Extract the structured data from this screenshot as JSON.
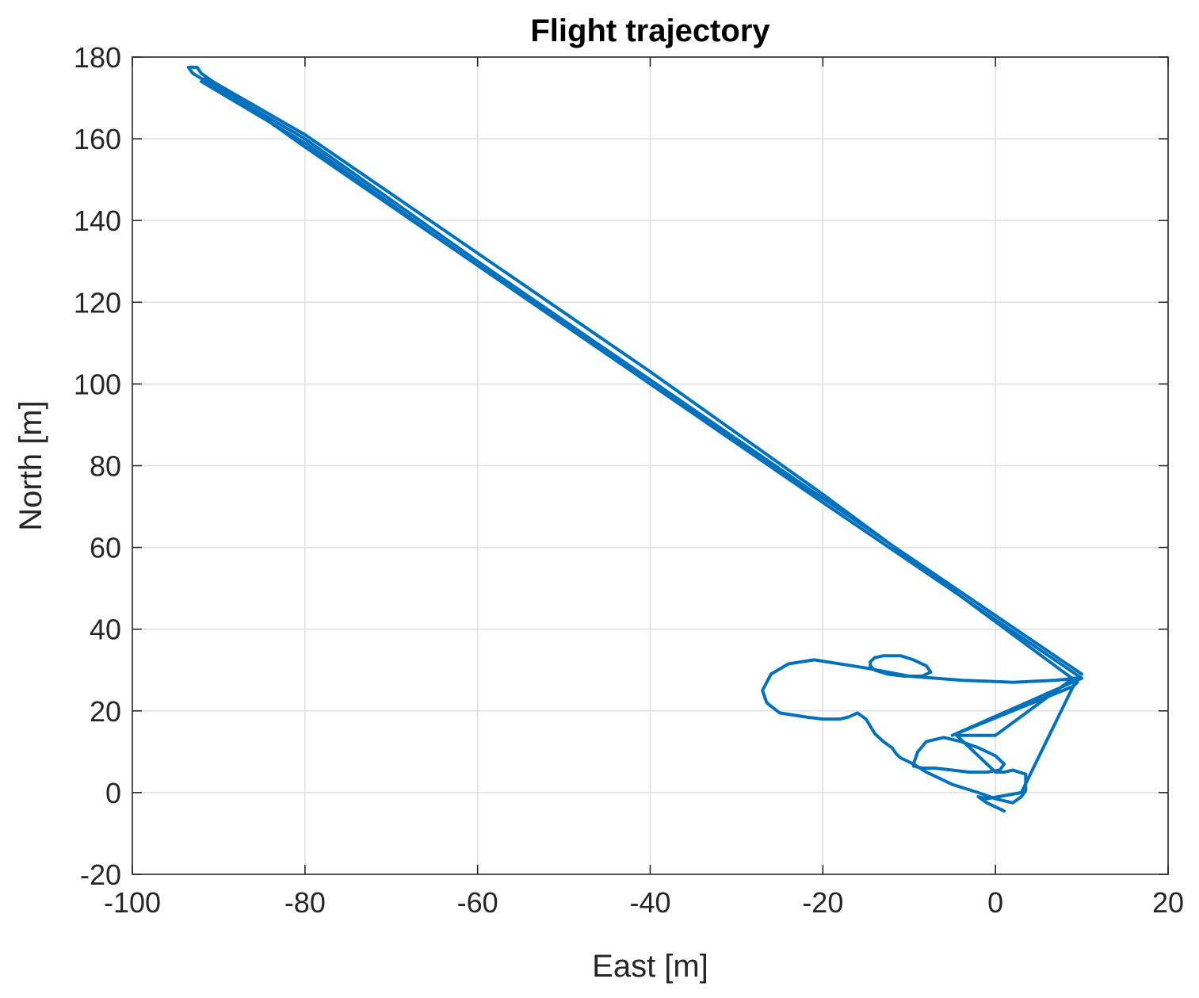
{
  "chart_data": {
    "type": "line",
    "title": "Flight trajectory",
    "xlabel": "East [m]",
    "ylabel": "North [m]",
    "xlim": [
      -100,
      20
    ],
    "ylim": [
      -20,
      180
    ],
    "xticks": [
      -100,
      -80,
      -60,
      -40,
      -20,
      0,
      20
    ],
    "yticks": [
      -20,
      0,
      20,
      40,
      60,
      80,
      100,
      120,
      140,
      160,
      180
    ],
    "grid": true,
    "series": [
      {
        "color": "#0072BD",
        "x": [
          10,
          -20,
          -40,
          -60,
          -80,
          -93,
          -93.5,
          -92.5,
          -92,
          -80,
          -60,
          -40,
          -20,
          10,
          -20,
          -40,
          -60,
          -80,
          -92,
          -91.5,
          -80,
          -60,
          -40,
          -20,
          9.5,
          9,
          9.5,
          7,
          2,
          -4,
          -10,
          -15,
          -21,
          -24,
          -26,
          -27,
          -26.5,
          -25,
          -22,
          -20,
          -18,
          -17,
          -16,
          -15,
          -14,
          -13,
          -12,
          -11.5,
          -11,
          -9.5,
          -8,
          -5,
          -2,
          0,
          2,
          3,
          3.5,
          3.5,
          3.5,
          2,
          1,
          0,
          -4.5,
          0,
          9,
          10,
          -5,
          9,
          3,
          -1,
          -2,
          -1,
          0,
          1
        ],
        "y": [
          29,
          72,
          101,
          130,
          160,
          176,
          177.5,
          177.5,
          176,
          158,
          129,
          101,
          71,
          28,
          71,
          100,
          129,
          159,
          174,
          175,
          161,
          132,
          103,
          73,
          27,
          26,
          28,
          27.5,
          27,
          27.5,
          28.5,
          30.5,
          32.5,
          31.5,
          29,
          25,
          22,
          19.5,
          18.5,
          18,
          18,
          18.5,
          19.5,
          18,
          14.5,
          12.5,
          11,
          9.5,
          8.5,
          7,
          5,
          2,
          0,
          -1.5,
          -2.5,
          -1,
          0.5,
          2.5,
          4.5,
          5.5,
          5,
          5,
          14,
          14,
          28,
          28,
          14,
          26,
          0,
          -1.5,
          -1,
          -2.5,
          -3.5,
          -4.5
        ]
      },
      {
        "color": "#0072BD",
        "x": [
          -14,
          -13,
          -11,
          -9.5,
          -8,
          -7.5,
          -8.5,
          -10.5,
          -12.5,
          -14,
          -14.5,
          -14.5,
          -14
        ],
        "y": [
          33,
          33.5,
          33.5,
          32.5,
          31,
          29.5,
          28.5,
          28.5,
          29,
          30,
          31,
          32,
          33
        ]
      },
      {
        "color": "#0072BD",
        "x": [
          -9.5,
          -9,
          -8,
          -6,
          -4,
          -2,
          0,
          1,
          0.5,
          -1,
          -3,
          -5,
          -7,
          -8.5,
          -9.5,
          -9.5
        ],
        "y": [
          7,
          10,
          12.5,
          13.5,
          12.5,
          11,
          9,
          7,
          5.5,
          5,
          5,
          5.5,
          6,
          6,
          6.5,
          7
        ]
      }
    ]
  }
}
